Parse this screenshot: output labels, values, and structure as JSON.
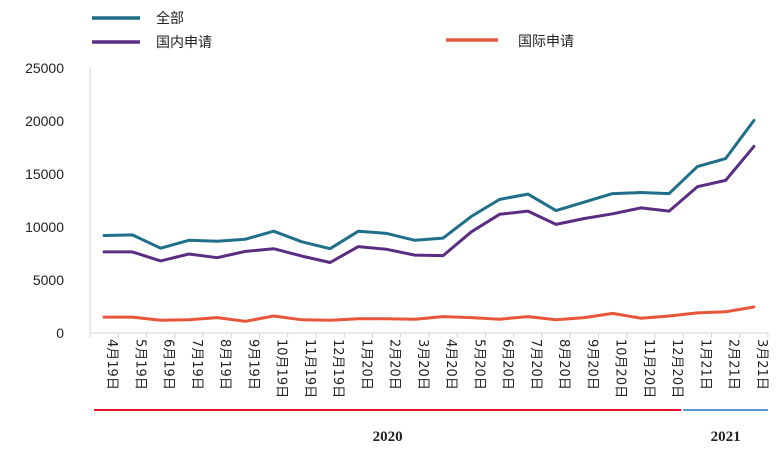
{
  "chart_data": {
    "type": "line",
    "categories": [
      "4月19日",
      "5月19日",
      "6月19日",
      "7月19日",
      "8月19日",
      "9月19日",
      "10月19日",
      "11月19日",
      "12月19日",
      "1月20日",
      "2月20日",
      "3月20日",
      "4月20日",
      "5月20日",
      "6月20日",
      "7月20日",
      "8月20日",
      "9月20日",
      "10月20日",
      "11月20日",
      "12月20日",
      "1月21日",
      "2月21日",
      "3月21日"
    ],
    "series": [
      {
        "name": "全部",
        "color": "#1f6f8b",
        "values": [
          9200,
          9250,
          8000,
          8750,
          8650,
          8850,
          9600,
          8600,
          7950,
          9600,
          9400,
          8750,
          8950,
          11000,
          12600,
          13100,
          11550,
          12350,
          13150,
          13250,
          13150,
          15700,
          16450,
          20050
        ]
      },
      {
        "name": "国内申请",
        "color": "#5a2d82",
        "values": [
          7650,
          7650,
          6800,
          7450,
          7100,
          7700,
          7950,
          7250,
          6650,
          8150,
          7900,
          7350,
          7300,
          9550,
          11200,
          11500,
          10250,
          10800,
          11250,
          11800,
          11500,
          13800,
          14400,
          17600
        ]
      },
      {
        "name": "国际申请",
        "color": "#e8553a",
        "values": [
          1500,
          1500,
          1200,
          1250,
          1450,
          1100,
          1600,
          1250,
          1200,
          1350,
          1350,
          1300,
          1550,
          1450,
          1300,
          1550,
          1250,
          1450,
          1850,
          1400,
          1600,
          1900,
          2000,
          2450
        ]
      }
    ],
    "ylim": [
      0,
      25000
    ],
    "yticks": [
      "0",
      "5000",
      "10000",
      "15000",
      "20000",
      "25000"
    ],
    "years": [
      {
        "label": "2020",
        "from": 0,
        "to": 20,
        "color": "#e8102a"
      },
      {
        "label": "2021",
        "from": 21,
        "to": 23,
        "color": "#5b9bd5"
      }
    ],
    "grid": false,
    "legend": "top"
  }
}
